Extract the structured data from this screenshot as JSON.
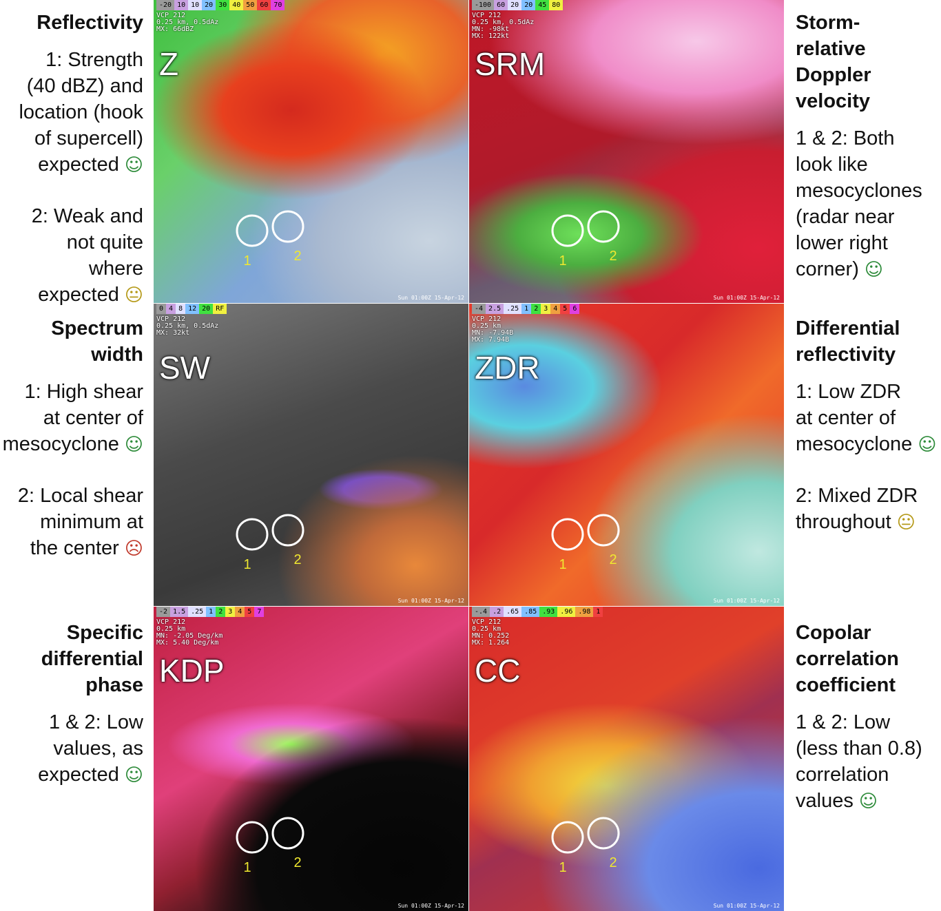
{
  "annotations_left": [
    {
      "title": [
        "Reflectivity"
      ],
      "notes": [
        {
          "lines": [
            "1: Strength",
            "(40 dBZ) and",
            "location (hook",
            "of supercell)",
            "expected"
          ],
          "face": "☺",
          "face_color": "#2e8b3a"
        },
        {
          "lines": [
            "2: Weak and",
            "not quite",
            "where",
            "expected"
          ],
          "face": "😐",
          "face_color": "#b59a1a"
        }
      ]
    },
    {
      "title": [
        "Spectrum",
        "width"
      ],
      "notes": [
        {
          "lines": [
            "1: High shear",
            "at center of",
            "mesocyclone"
          ],
          "face": "☺",
          "face_color": "#2e8b3a"
        },
        {
          "lines": [
            "2: Local shear",
            "minimum at",
            "the center"
          ],
          "face": "☹",
          "face_color": "#c0392b"
        }
      ]
    },
    {
      "title": [
        "Specific",
        "differential",
        "phase"
      ],
      "notes": [
        {
          "lines": [
            "1 & 2: Low",
            "values, as",
            "expected"
          ],
          "face": "☺",
          "face_color": "#2e8b3a"
        }
      ]
    }
  ],
  "annotations_right": [
    {
      "title": [
        "Storm-",
        "relative",
        "Doppler",
        "velocity"
      ],
      "notes": [
        {
          "lines": [
            "1 & 2: Both",
            "look like",
            "mesocyclones",
            "(radar near",
            "lower right",
            "corner)"
          ],
          "face": "☺",
          "face_color": "#2e8b3a"
        }
      ]
    },
    {
      "title": [
        "Differential",
        "reflectivity"
      ],
      "notes": [
        {
          "lines": [
            "1: Low ZDR",
            "at center of",
            "mesocyclone"
          ],
          "face": "☺",
          "face_color": "#2e8b3a"
        },
        {
          "lines": [
            "2: Mixed ZDR",
            "throughout"
          ],
          "face": "😐",
          "face_color": "#b59a1a"
        }
      ]
    },
    {
      "title": [
        "Copolar",
        "correlation",
        "coefficient"
      ],
      "notes": [
        {
          "lines": [
            "1 & 2: Low",
            "(less than 0.8)",
            "correlation",
            "values"
          ],
          "face": "☺",
          "face_color": "#2e8b3a"
        }
      ]
    }
  ],
  "panels": [
    {
      "label": "Z",
      "scale": [
        "-20",
        "10",
        "10",
        "20",
        "30",
        "40",
        "50",
        "60",
        "70"
      ],
      "info": [
        "VCP 212",
        "0.25 km, 0.5dAz",
        "MX: 66dBZ"
      ],
      "circles": [
        "1",
        "2"
      ],
      "time": "Sun 01:00Z 15-Apr-12"
    },
    {
      "label": "SRM",
      "scale": [
        "-100",
        "60",
        "20",
        "20",
        "45",
        "80"
      ],
      "info": [
        "VCP 212",
        "0.25 km, 0.5dAz",
        "MN: -98kt",
        "MX: 122kt"
      ],
      "circles": [
        "1",
        "2"
      ],
      "time": "Sun 01:00Z 15-Apr-12"
    },
    {
      "label": "SW",
      "scale": [
        "0",
        "4",
        "8",
        "12",
        "20",
        "RF"
      ],
      "info": [
        "VCP 212",
        "0.25 km, 0.5dAz",
        "MX: 32kt"
      ],
      "circles": [
        "1",
        "2"
      ],
      "time": "Sun 01:00Z 15-Apr-12"
    },
    {
      "label": "ZDR",
      "scale": [
        "-4",
        "2.5",
        ".25",
        "1",
        "2",
        "3",
        "4",
        "5",
        "6"
      ],
      "info": [
        "VCP 212",
        "0.25 km",
        "MN: -7.94B",
        "MX: 7.94B"
      ],
      "circles": [
        "1",
        "2"
      ],
      "time": "Sun 01:00Z 15-Apr-12"
    },
    {
      "label": "KDP",
      "scale": [
        "-2",
        "1.5",
        ".25",
        "1",
        "2",
        "3",
        "4",
        "5",
        "7"
      ],
      "info": [
        "VCP 212",
        "0.25 km",
        "MN: -2.05 Deg/km",
        "MX: 5.40 Deg/km"
      ],
      "circles": [
        "1",
        "2"
      ],
      "time": "Sun 01:00Z 15-Apr-12"
    },
    {
      "label": "CC",
      "scale": [
        "-.4",
        ".2",
        ".65",
        ".85",
        ".93",
        ".96",
        ".98",
        "1"
      ],
      "info": [
        "VCP 212",
        "0.25 km",
        "MN: 0.252",
        "MX: 1.264"
      ],
      "circles": [
        "1",
        "2"
      ],
      "time": "Sun 01:00Z 15-Apr-12"
    }
  ]
}
